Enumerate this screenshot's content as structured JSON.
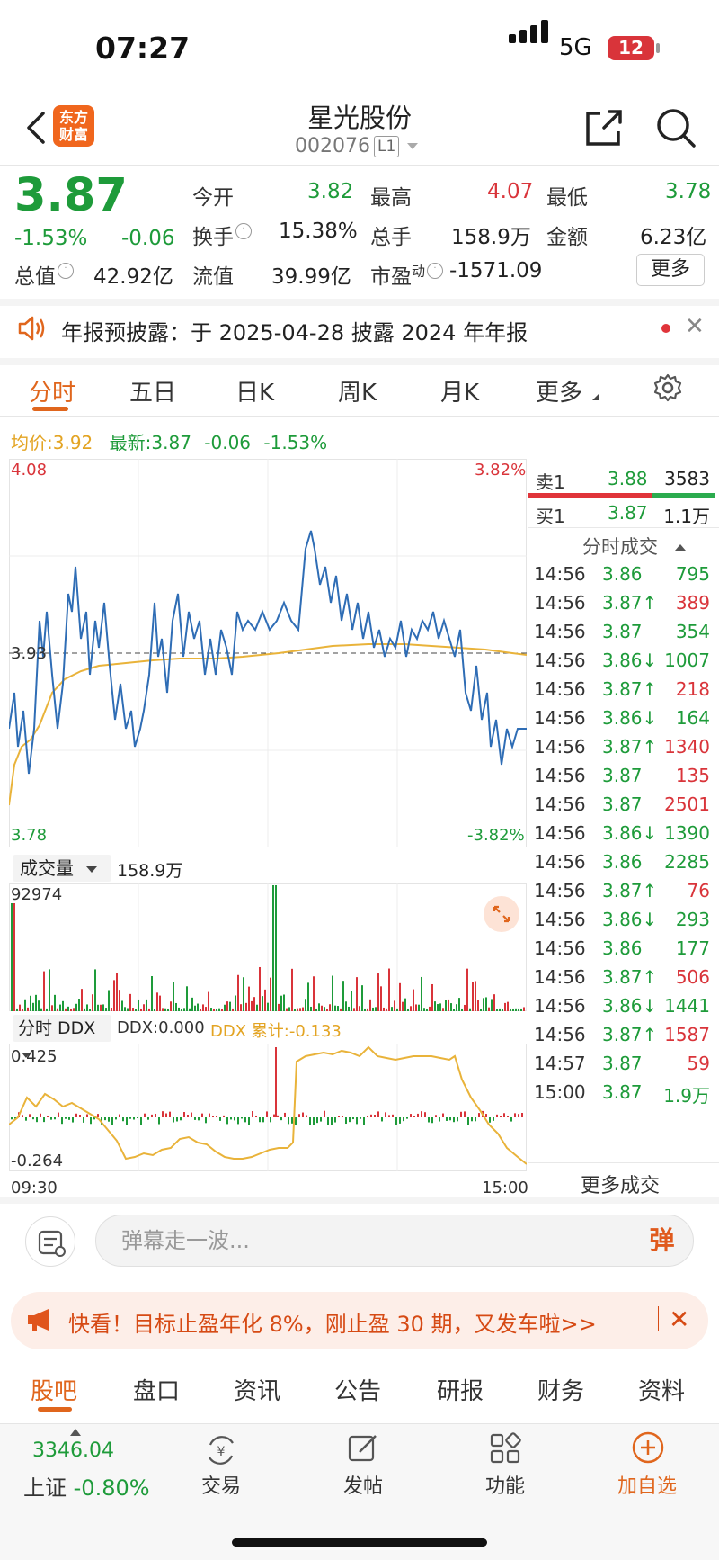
{
  "status_bar": {
    "time": "07:27",
    "network": "5G",
    "battery": "12"
  },
  "header": {
    "stock_name": "星光股份",
    "stock_code": "002076",
    "level": "L1",
    "logo_text_1": "东方",
    "logo_text_2": "财富"
  },
  "quote": {
    "price": "3.87",
    "change_pct": "-1.53%",
    "change": "-0.06",
    "open_label": "今开",
    "open": "3.82",
    "high_label": "最高",
    "high": "4.07",
    "low_label": "最低",
    "low": "3.78",
    "turnover_label": "换手",
    "turnover": "15.38%",
    "volume_label": "总手",
    "volume": "158.9万",
    "amount_label": "金额",
    "amount": "6.23亿",
    "mktcap_label": "总值",
    "mktcap": "42.92亿",
    "float_label": "流值",
    "float": "39.99亿",
    "pe_label": "市盈",
    "pe_sup": "动",
    "pe": "-1571.09",
    "more_button": "更多"
  },
  "notice": {
    "text": "年报预披露：于 2025-04-28 披露 2024 年年报"
  },
  "chart_tabs": [
    "分时",
    "五日",
    "日K",
    "周K",
    "月K",
    "更多"
  ],
  "intraday": {
    "avg_label": "均价:",
    "avg": "3.92",
    "latest_label": "最新:",
    "latest": "3.87",
    "latest_change": "-0.06",
    "latest_pct": "-1.53%",
    "y_top": "4.08",
    "y_mid": "3.93",
    "y_bottom": "3.78",
    "pct_top": "3.82%",
    "pct_bottom": "-3.82%",
    "volume_selector": "成交量",
    "volume_total": "158.9万",
    "volume_max": "92974",
    "ddx_selector": "分时 DDX",
    "ddx_value": "DDX:0.000",
    "ddx_cum": "DDX 累计:-0.133",
    "ddx_top": "0.425",
    "ddx_bottom": "-0.264",
    "time_start": "09:30",
    "time_end": "15:00"
  },
  "order_book": {
    "sell1_label": "卖1",
    "sell1_price": "3.88",
    "sell1_vol": "3583",
    "buy1_label": "买1",
    "buy1_price": "3.87",
    "buy1_vol": "1.1万",
    "trades_title": "分时成交",
    "more_trades": "更多成交",
    "trades": [
      {
        "time": "14:56",
        "price": "3.86",
        "vol": "795",
        "dir": ""
      },
      {
        "time": "14:56",
        "price": "3.87↑",
        "vol": "389",
        "dir": "up"
      },
      {
        "time": "14:56",
        "price": "3.87",
        "vol": "354",
        "dir": ""
      },
      {
        "time": "14:56",
        "price": "3.86↓",
        "vol": "1007",
        "dir": "down"
      },
      {
        "time": "14:56",
        "price": "3.87↑",
        "vol": "218",
        "dir": "up"
      },
      {
        "time": "14:56",
        "price": "3.86↓",
        "vol": "164",
        "dir": "down"
      },
      {
        "time": "14:56",
        "price": "3.87↑",
        "vol": "1340",
        "dir": "up"
      },
      {
        "time": "14:56",
        "price": "3.87",
        "vol": "135",
        "dir": "flat-red"
      },
      {
        "time": "14:56",
        "price": "3.87",
        "vol": "2501",
        "dir": "flat-red"
      },
      {
        "time": "14:56",
        "price": "3.86↓",
        "vol": "1390",
        "dir": "down"
      },
      {
        "time": "14:56",
        "price": "3.86",
        "vol": "2285",
        "dir": ""
      },
      {
        "time": "14:56",
        "price": "3.87↑",
        "vol": "76",
        "dir": "up"
      },
      {
        "time": "14:56",
        "price": "3.86↓",
        "vol": "293",
        "dir": "down"
      },
      {
        "time": "14:56",
        "price": "3.86",
        "vol": "177",
        "dir": ""
      },
      {
        "time": "14:56",
        "price": "3.87↑",
        "vol": "506",
        "dir": "up"
      },
      {
        "time": "14:56",
        "price": "3.86↓",
        "vol": "1441",
        "dir": "down"
      },
      {
        "time": "14:56",
        "price": "3.87↑",
        "vol": "1587",
        "dir": "up"
      },
      {
        "time": "14:57",
        "price": "3.87",
        "vol": "59",
        "dir": "flat-red"
      },
      {
        "time": "15:00",
        "price": "3.87",
        "vol": "1.9万",
        "dir": ""
      }
    ]
  },
  "comment": {
    "placeholder": "弹幕走一波...",
    "danmu_button": "弹"
  },
  "promo": {
    "text": "快看！目标止盈年化 8%，刚止盈 30 期，又发车啦>>"
  },
  "bottom_tabs": [
    "股吧",
    "盘口",
    "资讯",
    "公告",
    "研报",
    "财务",
    "资料"
  ],
  "nav": {
    "index_value": "3346.04",
    "index_name": "上证",
    "index_pct": "-0.80%",
    "trade": "交易",
    "post": "发帖",
    "functions": "功能",
    "add_watch": "加自选"
  },
  "colors": {
    "up": "#d9343a",
    "down": "#1e9b3a",
    "accent": "#e0661d",
    "avg_line": "#e9b33a",
    "price_line": "#2f6db5"
  }
}
